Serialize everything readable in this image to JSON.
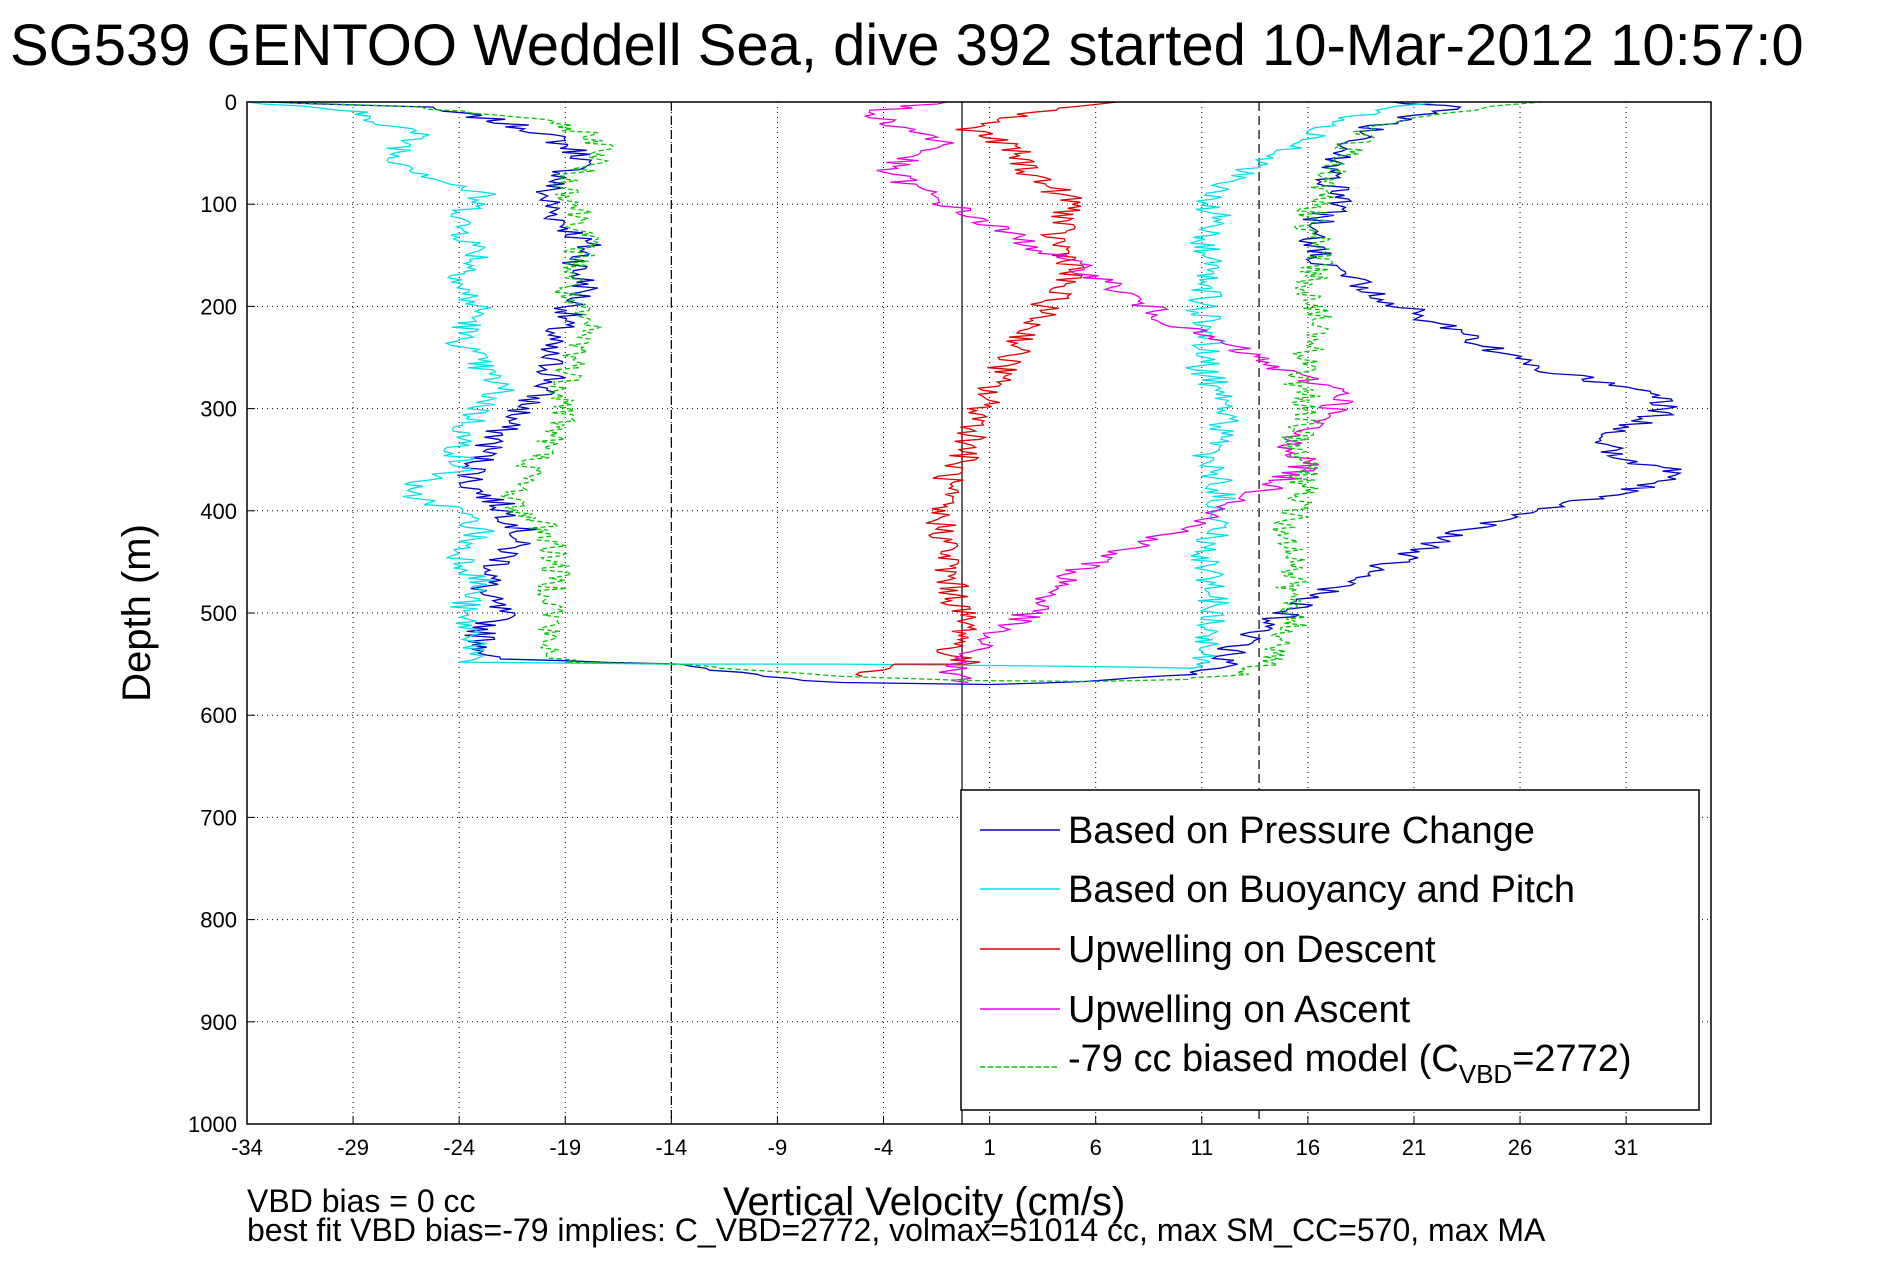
{
  "chart_data": {
    "type": "line",
    "title": "SG539 GENTOO Weddell Sea, dive 392 started 10-Mar-2012 10:57:0",
    "xlabel": "Vertical Velocity (cm/s)",
    "ylabel": "Depth (m)",
    "xlim": [
      -34,
      35
    ],
    "ylim": [
      0,
      1000
    ],
    "y_reversed": true,
    "xticks": [
      "-34",
      "-29",
      "-24",
      "-19",
      "-14",
      "-9",
      "-4",
      "1",
      "6",
      "11",
      "16",
      "21",
      "26",
      "31"
    ],
    "yticks": [
      "0",
      "100",
      "200",
      "300",
      "400",
      "500",
      "600",
      "700",
      "800",
      "900",
      "1000"
    ],
    "grid": true,
    "reference_lines": [
      {
        "x": -14,
        "style": "dashed"
      },
      {
        "x": -0.3,
        "style": "solid"
      },
      {
        "x": 13.7,
        "style": "dashed"
      }
    ],
    "legend": {
      "placement": "bottom-right",
      "entries": [
        "Based on Pressure Change",
        "Based on Buoyancy and Pitch",
        "Upwelling on Descent",
        "Upwelling on Ascent"
      ],
      "model_entry": {
        "prefix": "-79 cc biased model (C",
        "sub": "VBD",
        "suffix": "=2772)"
      }
    },
    "series": [
      {
        "name": "Based on Pressure Change",
        "color": "#0000c8",
        "style": "solid",
        "points": [
          [
            -33,
            0
          ],
          [
            -26,
            5
          ],
          [
            -23,
            15
          ],
          [
            -20,
            30
          ],
          [
            -18,
            55
          ],
          [
            -19,
            70
          ],
          [
            -20,
            90
          ],
          [
            -19.5,
            110
          ],
          [
            -18,
            140
          ],
          [
            -18.5,
            165
          ],
          [
            -18,
            180
          ],
          [
            -19,
            210
          ],
          [
            -20,
            240
          ],
          [
            -19.5,
            270
          ],
          [
            -21,
            300
          ],
          [
            -22,
            320
          ],
          [
            -23,
            350
          ],
          [
            -23.5,
            375
          ],
          [
            -22,
            395
          ],
          [
            -21,
            420
          ],
          [
            -22,
            450
          ],
          [
            -23,
            480
          ],
          [
            -22,
            500
          ],
          [
            -23,
            520
          ],
          [
            -22.5,
            545
          ],
          [
            -14,
            550
          ],
          [
            -10,
            560
          ],
          [
            -6,
            568
          ],
          [
            1,
            570
          ],
          [
            6,
            567
          ],
          [
            10,
            560
          ],
          [
            12,
            550
          ],
          [
            12.5,
            535
          ],
          [
            14,
            515
          ],
          [
            15,
            500
          ],
          [
            17,
            475
          ],
          [
            20,
            450
          ],
          [
            22,
            430
          ],
          [
            25,
            410
          ],
          [
            29,
            390
          ],
          [
            32,
            375
          ],
          [
            34,
            365
          ],
          [
            31,
            350
          ],
          [
            30,
            335
          ],
          [
            31,
            320
          ],
          [
            33,
            300
          ],
          [
            32,
            285
          ],
          [
            30,
            275
          ],
          [
            27,
            262
          ],
          [
            25,
            245
          ],
          [
            23,
            225
          ],
          [
            21,
            205
          ],
          [
            18.5,
            180
          ],
          [
            17,
            160
          ],
          [
            16,
            140
          ],
          [
            16.5,
            115
          ],
          [
            18,
            95
          ],
          [
            17,
            80
          ],
          [
            17.5,
            60
          ],
          [
            18,
            40
          ],
          [
            19,
            25
          ],
          [
            21,
            15
          ],
          [
            23,
            5
          ],
          [
            20,
            0
          ]
        ]
      },
      {
        "name": "Based on Buoyancy and Pitch",
        "color": "#00e0e8",
        "style": "solid",
        "points": [
          [
            -34,
            0
          ],
          [
            -29,
            10
          ],
          [
            -26,
            30
          ],
          [
            -27,
            55
          ],
          [
            -25,
            75
          ],
          [
            -23,
            90
          ],
          [
            -24,
            120
          ],
          [
            -23,
            150
          ],
          [
            -24,
            180
          ],
          [
            -23,
            205
          ],
          [
            -24,
            230
          ],
          [
            -23,
            260
          ],
          [
            -22,
            280
          ],
          [
            -23,
            300
          ],
          [
            -24,
            330
          ],
          [
            -24,
            360
          ],
          [
            -27,
            380
          ],
          [
            -24,
            400
          ],
          [
            -23,
            420
          ],
          [
            -24,
            440
          ],
          [
            -23,
            470
          ],
          [
            -24,
            500
          ],
          [
            -23,
            530
          ],
          [
            -24,
            548
          ],
          [
            -14,
            550
          ],
          [
            -6,
            550
          ],
          [
            -1,
            551
          ],
          [
            4,
            552
          ],
          [
            8,
            553
          ],
          [
            11,
            554
          ],
          [
            11,
            530
          ],
          [
            11.5,
            500
          ],
          [
            11.5,
            470
          ],
          [
            11,
            440
          ],
          [
            12,
            410
          ],
          [
            12,
            380
          ],
          [
            11,
            350
          ],
          [
            12,
            320
          ],
          [
            12,
            290
          ],
          [
            11,
            260
          ],
          [
            11.5,
            230
          ],
          [
            11,
            200
          ],
          [
            11.5,
            170
          ],
          [
            11,
            140
          ],
          [
            12,
            115
          ],
          [
            11,
            95
          ],
          [
            13,
            70
          ],
          [
            15,
            45
          ],
          [
            17,
            25
          ],
          [
            19,
            10
          ],
          [
            22,
            0
          ]
        ]
      },
      {
        "name": "Upwelling on Descent",
        "color": "#e00000",
        "style": "solid",
        "points": [
          [
            7,
            0
          ],
          [
            3,
            10
          ],
          [
            0,
            25
          ],
          [
            2,
            45
          ],
          [
            3,
            70
          ],
          [
            5,
            100
          ],
          [
            4,
            130
          ],
          [
            5,
            160
          ],
          [
            4,
            190
          ],
          [
            3,
            220
          ],
          [
            2,
            250
          ],
          [
            1,
            280
          ],
          [
            0.5,
            310
          ],
          [
            0,
            340
          ],
          [
            -1,
            370
          ],
          [
            -1.5,
            400
          ],
          [
            -1,
            430
          ],
          [
            -1,
            460
          ],
          [
            -0.5,
            490
          ],
          [
            0,
            520
          ],
          [
            -1,
            540
          ],
          [
            0,
            550
          ],
          [
            -3,
            550
          ],
          [
            -5,
            562
          ]
        ]
      },
      {
        "name": "Upwelling on Ascent",
        "color": "#e800e8",
        "style": "solid",
        "points": [
          [
            -1,
            0
          ],
          [
            -5,
            10
          ],
          [
            -3,
            25
          ],
          [
            -1,
            40
          ],
          [
            -4,
            65
          ],
          [
            -2,
            90
          ],
          [
            0,
            110
          ],
          [
            2,
            130
          ],
          [
            4,
            150
          ],
          [
            6,
            170
          ],
          [
            8,
            195
          ],
          [
            10,
            220
          ],
          [
            13,
            245
          ],
          [
            15,
            265
          ],
          [
            18,
            285
          ],
          [
            17,
            305
          ],
          [
            15,
            330
          ],
          [
            16,
            355
          ],
          [
            14,
            380
          ],
          [
            12,
            400
          ],
          [
            10,
            420
          ],
          [
            7,
            440
          ],
          [
            5,
            460
          ],
          [
            4,
            480
          ],
          [
            3,
            500
          ],
          [
            1,
            520
          ],
          [
            0,
            540
          ],
          [
            -1,
            560
          ],
          [
            0,
            568
          ]
        ]
      },
      {
        "name": "-79 cc biased model (CVBD=2772)",
        "color": "#00c800",
        "style": "dashed",
        "points": [
          [
            -33,
            0
          ],
          [
            -26,
            5
          ],
          [
            -21,
            15
          ],
          [
            -18,
            30
          ],
          [
            -17,
            50
          ],
          [
            -19,
            75
          ],
          [
            -18.5,
            100
          ],
          [
            -18,
            130
          ],
          [
            -18.5,
            160
          ],
          [
            -19,
            190
          ],
          [
            -18,
            220
          ],
          [
            -18.5,
            250
          ],
          [
            -19,
            280
          ],
          [
            -19,
            310
          ],
          [
            -20,
            340
          ],
          [
            -21,
            370
          ],
          [
            -21.5,
            395
          ],
          [
            -20,
            415
          ],
          [
            -19.5,
            440
          ],
          [
            -19.5,
            470
          ],
          [
            -19.5,
            500
          ],
          [
            -20,
            530
          ],
          [
            -19,
            548
          ],
          [
            -14,
            550
          ],
          [
            -8,
            560
          ],
          [
            0,
            566
          ],
          [
            6,
            567
          ],
          [
            10,
            565
          ],
          [
            13,
            560
          ],
          [
            14.5,
            545
          ],
          [
            15,
            520
          ],
          [
            15.5,
            500
          ],
          [
            15,
            475
          ],
          [
            15.5,
            450
          ],
          [
            15,
            420
          ],
          [
            15.5,
            390
          ],
          [
            16,
            360
          ],
          [
            15.5,
            330
          ],
          [
            16,
            300
          ],
          [
            15.5,
            270
          ],
          [
            16,
            240
          ],
          [
            16.5,
            210
          ],
          [
            16,
            180
          ],
          [
            16.5,
            150
          ],
          [
            16,
            120
          ],
          [
            16.5,
            95
          ],
          [
            17,
            70
          ],
          [
            18,
            45
          ],
          [
            19,
            25
          ],
          [
            23,
            10
          ],
          [
            27,
            0
          ]
        ]
      }
    ]
  },
  "footer": {
    "line1": "VBD bias = 0 cc",
    "line2": "best fit VBD bias=-79 implies: C_VBD=2772, volmax=51014 cc, max SM_CC=570, max MA"
  }
}
